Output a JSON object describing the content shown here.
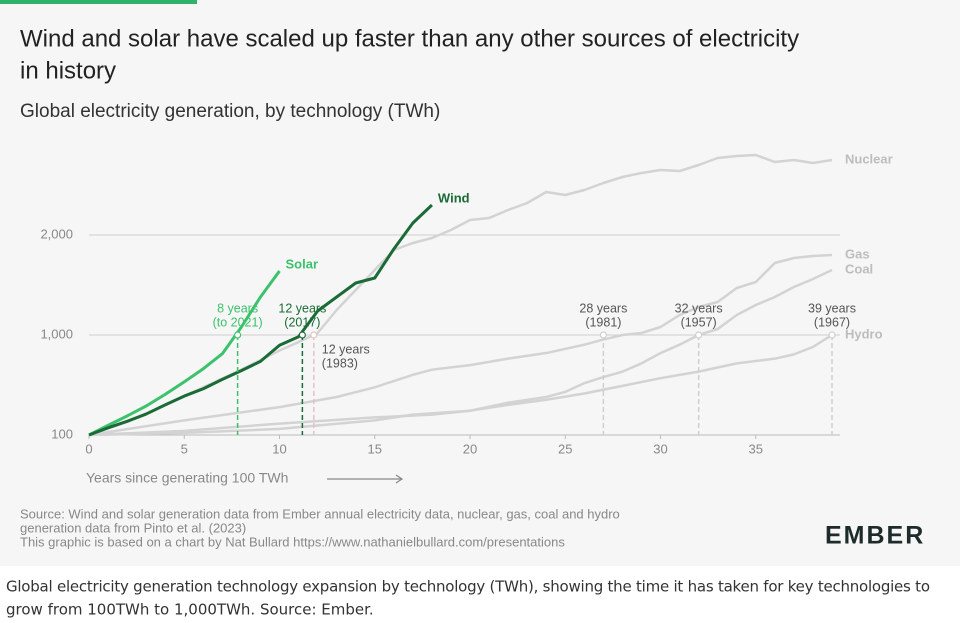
{
  "chart_data": {
    "type": "line",
    "title": [
      "Wind and solar have scaled up faster than any other sources of electricity",
      "in history"
    ],
    "subtitle": "Global electricity generation, by technology (TWh)",
    "x_label": "Years since generating 100 TWh",
    "xlim": [
      0,
      39
    ],
    "xticks": [
      0,
      5,
      10,
      15,
      20,
      25,
      30,
      35
    ],
    "ylim": [
      100,
      2900
    ],
    "yticks": [
      100,
      {
        "value": 1000,
        "label": "1,000"
      },
      {
        "value": 2000,
        "label": "2,000"
      }
    ],
    "grid": true,
    "series": [
      {
        "name": "Nuclear",
        "color": "#d3d3d3",
        "x": [
          0,
          2,
          4,
          6,
          8,
          10,
          11,
          12,
          13,
          14,
          15,
          16,
          17,
          18,
          19,
          20,
          21,
          22,
          23,
          24,
          25,
          26,
          27,
          28,
          29,
          30,
          31,
          32,
          33,
          34,
          35,
          36,
          37,
          38,
          39
        ],
        "values": [
          100,
          135,
          200,
          300,
          450,
          700,
          850,
          1020,
          1250,
          1450,
          1650,
          1850,
          1920,
          1970,
          2050,
          2150,
          2170,
          2250,
          2320,
          2430,
          2400,
          2450,
          2520,
          2580,
          2620,
          2650,
          2640,
          2700,
          2770,
          2790,
          2800,
          2730,
          2750,
          2720,
          2750
        ]
      },
      {
        "name": "Gas",
        "color": "#d3d3d3",
        "x": [
          0,
          5,
          10,
          13,
          15,
          17,
          18,
          20,
          22,
          24,
          26,
          27,
          28,
          29,
          30,
          31,
          32,
          33,
          34,
          35,
          36,
          37,
          38,
          39
        ],
        "values": [
          100,
          140,
          190,
          240,
          300,
          400,
          450,
          500,
          580,
          660,
          800,
          900,
          1000,
          1020,
          1080,
          1200,
          1280,
          1330,
          1470,
          1530,
          1720,
          1770,
          1790,
          1800
        ]
      },
      {
        "name": "Coal",
        "color": "#d3d3d3",
        "x": [
          0,
          5,
          10,
          15,
          18,
          20,
          22,
          24,
          25,
          26,
          27,
          28,
          29,
          30,
          31,
          32,
          33,
          34,
          35,
          36,
          37,
          38,
          39
        ],
        "values": [
          100,
          110,
          130,
          150,
          160,
          175,
          210,
          240,
          270,
          330,
          380,
          430,
          520,
          660,
          800,
          1000,
          1060,
          1200,
          1300,
          1380,
          1480,
          1560,
          1650
        ]
      },
      {
        "name": "Hydro",
        "color": "#d3d3d3",
        "x": [
          0,
          5,
          10,
          15,
          17,
          20,
          22,
          24,
          26,
          28,
          30,
          32,
          34,
          36,
          37,
          38,
          39
        ],
        "values": [
          100,
          105,
          115,
          140,
          160,
          175,
          200,
          225,
          260,
          310,
          370,
          430,
          520,
          580,
          640,
          760,
          1000
        ]
      },
      {
        "name": "Solar",
        "color": "#3cc26c",
        "x": [
          0,
          1,
          2,
          3,
          4,
          5,
          6,
          7,
          8,
          9,
          10
        ],
        "values": [
          100,
          125,
          155,
          195,
          255,
          340,
          460,
          650,
          1080,
          1380,
          1640
        ]
      },
      {
        "name": "Wind",
        "color": "#1b6b36",
        "x": [
          0,
          1,
          2,
          3,
          4,
          5,
          6,
          7,
          8,
          9,
          10,
          11,
          12,
          13,
          14,
          15,
          16,
          17,
          18
        ],
        "values": [
          100,
          118,
          137,
          162,
          200,
          245,
          290,
          360,
          440,
          545,
          790,
          960,
          1240,
          1380,
          1520,
          1570,
          1860,
          2120,
          2300
        ]
      }
    ],
    "annotations": [
      {
        "x": 7.8,
        "y": 1000,
        "lines": [
          "8 years",
          "(to 2021)"
        ],
        "color": "#3cc26c"
      },
      {
        "x": 11.2,
        "y": 1000,
        "lines": [
          "12 years",
          "(2017)"
        ],
        "color": "#1b6b36"
      },
      {
        "x": 11.8,
        "y": 1000,
        "lines": [
          "12 years",
          "(1983)"
        ],
        "color": "#e3c4c4"
      },
      {
        "x": 27,
        "y": 1000,
        "lines": [
          "28 years",
          "(1981)"
        ],
        "color": "#cfcfcf"
      },
      {
        "x": 32,
        "y": 1000,
        "lines": [
          "32 years",
          "(1957)"
        ],
        "color": "#cfcfcf"
      },
      {
        "x": 39,
        "y": 1000,
        "lines": [
          "39 years",
          "(1967)"
        ],
        "color": "#cfcfcf"
      }
    ],
    "source": [
      "Source: Wind and solar generation data from Ember annual electricity data, nuclear, gas, coal and hydro",
      "generation data from Pinto et al. (2023)",
      "This graphic is based on a chart by Nat Bullard https://www.nathanielbullard.com/presentations"
    ],
    "logo": "EMBER",
    "caption": [
      "Global electricity generation technology expansion by technology (TWh), showing the time it has taken for key technologies to",
      "grow from 100TWh to 1,000TWh. Source: Ember."
    ]
  }
}
